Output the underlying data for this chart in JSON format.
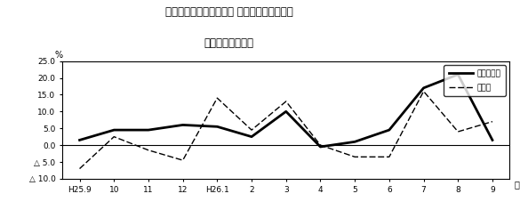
{
  "title_line1": "第２図　所定外労働時間 対前年同月比の推移",
  "title_line2": "（規樯５人以上）",
  "xlabel": "月",
  "ylabel": "%",
  "x_labels": [
    "H25.9",
    "10",
    "11",
    "12",
    "H26.1",
    "2",
    "3",
    "4",
    "5",
    "6",
    "7",
    "8",
    "9"
  ],
  "solid_label": "調査産業計",
  "dashed_label": "製造業",
  "solid_values": [
    1.5,
    4.5,
    4.5,
    6.0,
    5.5,
    2.5,
    10.0,
    -0.5,
    1.0,
    4.5,
    17.0,
    21.0,
    1.5
  ],
  "dashed_values": [
    -7.0,
    2.5,
    -1.5,
    -4.5,
    14.0,
    4.5,
    13.0,
    0.0,
    -3.5,
    -3.5,
    16.0,
    4.0,
    7.0
  ],
  "ylim": [
    -10.0,
    25.0
  ],
  "ytick_vals": [
    25.0,
    20.0,
    15.0,
    10.0,
    5.0,
    0.0,
    -5.0,
    -10.0
  ],
  "ytick_labels": [
    "25.0",
    "20.0",
    "15.0",
    "10.0",
    "5.0",
    "0.0",
    "△ 5.0",
    "△ 10.0"
  ],
  "bg_color": "#ffffff",
  "line_color": "#000000"
}
